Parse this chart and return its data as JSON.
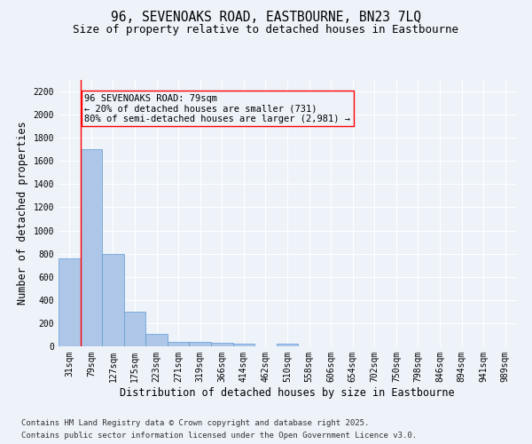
{
  "title": "96, SEVENOAKS ROAD, EASTBOURNE, BN23 7LQ",
  "subtitle": "Size of property relative to detached houses in Eastbourne",
  "xlabel": "Distribution of detached houses by size in Eastbourne",
  "ylabel": "Number of detached properties",
  "categories": [
    "31sqm",
    "79sqm",
    "127sqm",
    "175sqm",
    "223sqm",
    "271sqm",
    "319sqm",
    "366sqm",
    "414sqm",
    "462sqm",
    "510sqm",
    "558sqm",
    "606sqm",
    "654sqm",
    "702sqm",
    "750sqm",
    "798sqm",
    "846sqm",
    "894sqm",
    "941sqm",
    "989sqm"
  ],
  "values": [
    760,
    1700,
    800,
    300,
    110,
    42,
    35,
    28,
    20,
    0,
    20,
    0,
    0,
    0,
    0,
    0,
    0,
    0,
    0,
    0,
    0
  ],
  "bar_color": "#aec6e8",
  "bar_edge_color": "#5b9bd5",
  "vline_x_index": 1,
  "vline_color": "red",
  "annotation_line1": "96 SEVENOAKS ROAD: 79sqm",
  "annotation_line2": "← 20% of detached houses are smaller (731)",
  "annotation_line3": "80% of semi-detached houses are larger (2,981) →",
  "ylim": [
    0,
    2300
  ],
  "yticks": [
    0,
    200,
    400,
    600,
    800,
    1000,
    1200,
    1400,
    1600,
    1800,
    2000,
    2200
  ],
  "footnote1": "Contains HM Land Registry data © Crown copyright and database right 2025.",
  "footnote2": "Contains public sector information licensed under the Open Government Licence v3.0.",
  "background_color": "#eef3fa",
  "grid_color": "#ffffff",
  "title_fontsize": 10.5,
  "subtitle_fontsize": 9,
  "label_fontsize": 8.5,
  "tick_fontsize": 7,
  "annotation_fontsize": 7.5,
  "footnote_fontsize": 6.5
}
